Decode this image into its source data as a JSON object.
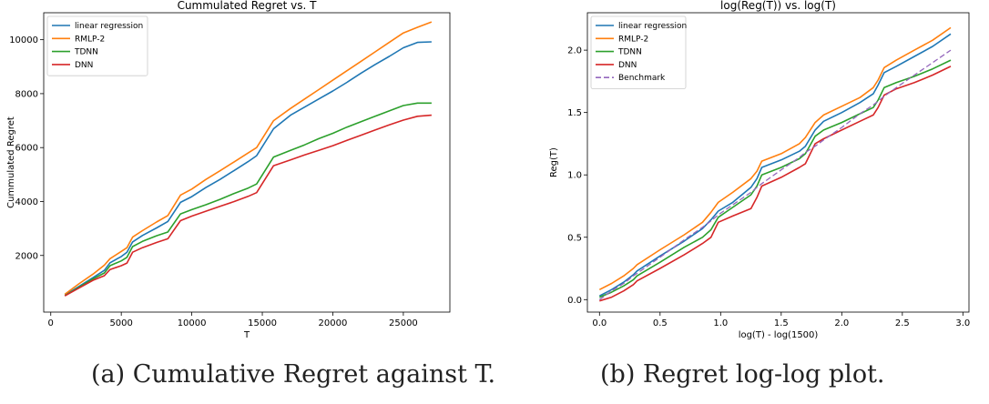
{
  "captions": {
    "a": "(a) Cumulative Regret against T.",
    "b": "(b) Regret log-log plot."
  },
  "colors": {
    "linear regression": "#1f77b4",
    "RMLP-2": "#ff7f0e",
    "TDNN": "#2ca02c",
    "DNN": "#d62728",
    "Benchmark": "#9467bd"
  },
  "chart_data": [
    {
      "type": "line",
      "title": "Cummulated Regret vs. T",
      "xlabel": "T",
      "ylabel": "Cummulated Regret",
      "xlim": [
        -500,
        28300
      ],
      "ylim": [
        -100,
        11000
      ],
      "xticks": [
        0,
        5000,
        10000,
        15000,
        20000,
        25000
      ],
      "yticks": [
        2000,
        4000,
        6000,
        8000,
        10000
      ],
      "legend": "top-left",
      "grid": false,
      "x": [
        1000,
        2000,
        3000,
        3800,
        4200,
        5000,
        5400,
        5800,
        6500,
        7500,
        8300,
        9200,
        10000,
        11000,
        12000,
        13000,
        14000,
        14600,
        15800,
        17000,
        18000,
        19000,
        20000,
        21000,
        22000,
        23000,
        24000,
        25000,
        26000,
        27000
      ],
      "series": [
        {
          "name": "linear regression",
          "values": [
            520,
            850,
            1180,
            1450,
            1730,
            1960,
            2120,
            2500,
            2740,
            3020,
            3260,
            3970,
            4180,
            4520,
            4820,
            5150,
            5480,
            5700,
            6700,
            7200,
            7500,
            7800,
            8100,
            8420,
            8760,
            9080,
            9380,
            9700,
            9900,
            9920
          ]
        },
        {
          "name": "RMLP-2",
          "values": [
            560,
            950,
            1310,
            1640,
            1880,
            2150,
            2290,
            2680,
            2920,
            3240,
            3480,
            4240,
            4460,
            4820,
            5140,
            5470,
            5800,
            6000,
            7000,
            7450,
            7800,
            8150,
            8500,
            8850,
            9200,
            9550,
            9900,
            10250,
            10460,
            10660
          ]
        },
        {
          "name": "TDNN",
          "values": [
            510,
            820,
            1130,
            1350,
            1620,
            1800,
            1930,
            2330,
            2520,
            2730,
            2870,
            3540,
            3700,
            3880,
            4080,
            4300,
            4500,
            4650,
            5650,
            5900,
            6100,
            6330,
            6530,
            6760,
            6960,
            7160,
            7360,
            7560,
            7650,
            7650
          ]
        },
        {
          "name": "DNN",
          "values": [
            500,
            790,
            1080,
            1250,
            1480,
            1620,
            1720,
            2120,
            2290,
            2480,
            2620,
            3290,
            3460,
            3640,
            3820,
            4000,
            4190,
            4330,
            5330,
            5540,
            5730,
            5900,
            6070,
            6270,
            6460,
            6650,
            6840,
            7020,
            7160,
            7200
          ]
        }
      ]
    },
    {
      "type": "line",
      "title": "log(Reg(T)) vs. log(T)",
      "xlabel": "log(T) - log(1500)",
      "ylabel": "Reg(T)",
      "xlim": [
        -0.1,
        3.05
      ],
      "ylim": [
        -0.1,
        2.3
      ],
      "xticks": [
        0.0,
        0.5,
        1.0,
        1.5,
        2.0,
        2.5,
        3.0
      ],
      "yticks": [
        0.0,
        0.5,
        1.0,
        1.5,
        2.0
      ],
      "legend": "top-left",
      "grid": false,
      "x": [
        0.0,
        0.1,
        0.2,
        0.28,
        0.31,
        0.5,
        0.7,
        0.85,
        0.92,
        0.98,
        1.1,
        1.25,
        1.3,
        1.34,
        1.5,
        1.65,
        1.7,
        1.78,
        1.85,
        2.0,
        2.15,
        2.26,
        2.3,
        2.35,
        2.45,
        2.6,
        2.75,
        2.9
      ],
      "series": [
        {
          "name": "linear regression",
          "values": [
            0.03,
            0.08,
            0.14,
            0.2,
            0.23,
            0.35,
            0.47,
            0.57,
            0.64,
            0.71,
            0.78,
            0.9,
            0.97,
            1.06,
            1.12,
            1.19,
            1.23,
            1.36,
            1.43,
            1.5,
            1.58,
            1.65,
            1.72,
            1.82,
            1.87,
            1.95,
            2.03,
            2.13
          ]
        },
        {
          "name": "RMLP-2",
          "values": [
            0.08,
            0.13,
            0.19,
            0.25,
            0.28,
            0.4,
            0.52,
            0.62,
            0.7,
            0.78,
            0.86,
            0.97,
            1.03,
            1.11,
            1.17,
            1.25,
            1.3,
            1.42,
            1.48,
            1.55,
            1.62,
            1.7,
            1.76,
            1.86,
            1.92,
            2.0,
            2.08,
            2.18
          ]
        },
        {
          "name": "TDNN",
          "values": [
            0.02,
            0.06,
            0.11,
            0.16,
            0.19,
            0.3,
            0.42,
            0.5,
            0.56,
            0.66,
            0.74,
            0.84,
            0.91,
            1.0,
            1.06,
            1.13,
            1.17,
            1.31,
            1.36,
            1.42,
            1.49,
            1.54,
            1.6,
            1.7,
            1.74,
            1.79,
            1.85,
            1.92
          ]
        },
        {
          "name": "DNN",
          "values": [
            -0.01,
            0.02,
            0.07,
            0.12,
            0.15,
            0.25,
            0.36,
            0.45,
            0.5,
            0.62,
            0.67,
            0.73,
            0.82,
            0.91,
            0.98,
            1.06,
            1.09,
            1.25,
            1.29,
            1.36,
            1.43,
            1.48,
            1.54,
            1.64,
            1.69,
            1.74,
            1.8,
            1.87
          ]
        },
        {
          "name": "Benchmark",
          "values": [
            0.0,
            0.07,
            0.13,
            0.19,
            0.21,
            0.34,
            0.48,
            0.58,
            0.63,
            0.68,
            0.76,
            0.86,
            0.9,
            0.93,
            1.04,
            1.14,
            1.18,
            1.23,
            1.28,
            1.38,
            1.49,
            1.56,
            1.59,
            1.63,
            1.7,
            1.8,
            1.9,
            2.0
          ]
        }
      ]
    }
  ]
}
